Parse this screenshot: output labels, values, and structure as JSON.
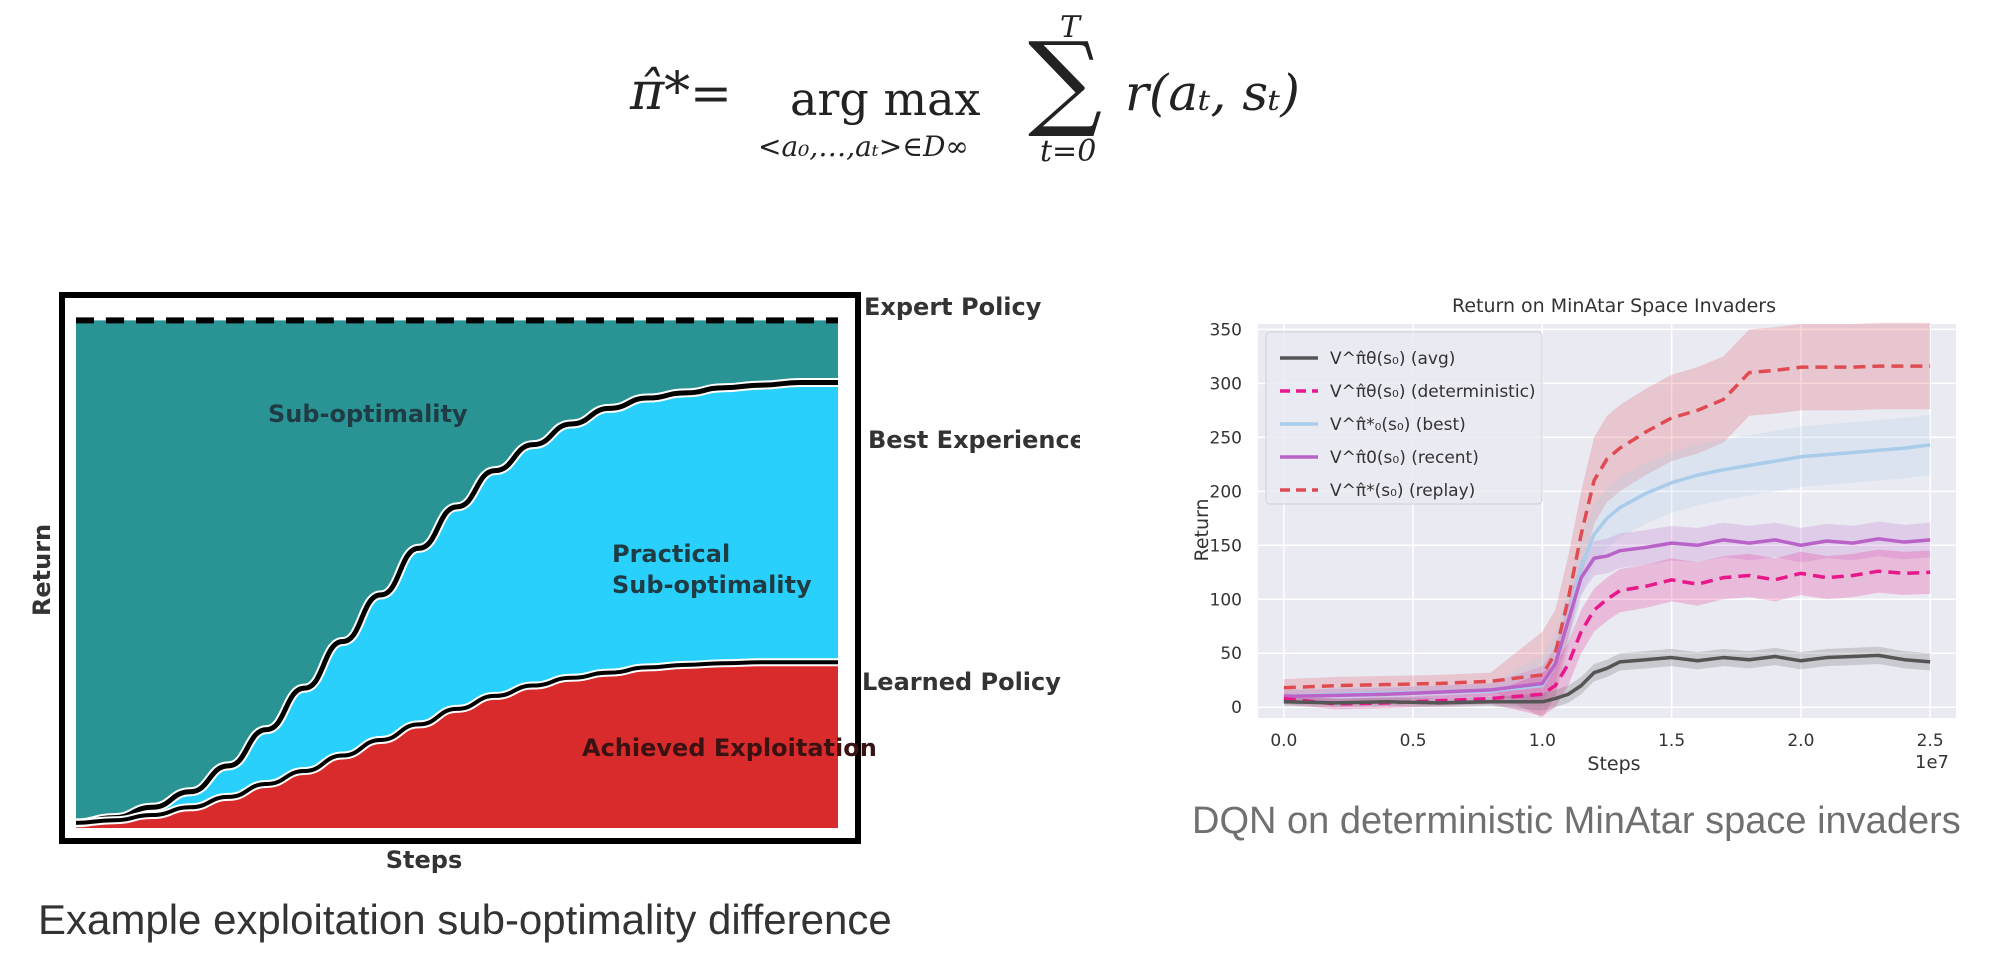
{
  "formula": {
    "lhs": "π̂*",
    "equals": "=",
    "operator": "arg max",
    "subscript": "<a₀,…,aₜ>∈D∞",
    "sum_symbol": "∑",
    "upper_limit": "T",
    "lower_limit": "t=0",
    "rhs": "r(aₜ, sₜ)"
  },
  "captions": {
    "left": "Example exploitation sub-optimality difference",
    "right": "DQN on deterministic MinAtar space invaders"
  },
  "chart_data": [
    {
      "type": "area",
      "title": "",
      "xlabel": "Steps",
      "ylabel": "Return",
      "x": [
        0,
        0.05,
        0.1,
        0.15,
        0.2,
        0.25,
        0.3,
        0.35,
        0.4,
        0.45,
        0.5,
        0.55,
        0.6,
        0.65,
        0.7,
        0.75,
        0.8,
        0.85,
        0.9,
        0.95,
        1.0
      ],
      "ylim": [
        0,
        1
      ],
      "series": [
        {
          "name": "Expert Policy",
          "values": [
            0.98,
            0.98,
            0.98,
            0.98,
            0.98,
            0.98,
            0.98,
            0.98,
            0.98,
            0.98,
            0.98,
            0.98,
            0.98,
            0.98,
            0.98,
            0.98,
            0.98,
            0.98,
            0.98,
            0.98,
            0.98
          ]
        },
        {
          "name": "Best Experience",
          "values": [
            0.01,
            0.02,
            0.04,
            0.07,
            0.12,
            0.19,
            0.27,
            0.36,
            0.45,
            0.54,
            0.62,
            0.69,
            0.74,
            0.78,
            0.81,
            0.83,
            0.84,
            0.85,
            0.855,
            0.86,
            0.86
          ]
        },
        {
          "name": "Learned Policy",
          "values": [
            0.01,
            0.015,
            0.025,
            0.04,
            0.06,
            0.085,
            0.11,
            0.14,
            0.17,
            0.2,
            0.23,
            0.255,
            0.275,
            0.29,
            0.3,
            0.31,
            0.315,
            0.318,
            0.32,
            0.32,
            0.32
          ]
        }
      ],
      "regions": [
        {
          "name": "Sub-optimality",
          "color": "#2A9494"
        },
        {
          "name": "Practical Sub-optimality",
          "color": "#29D0FC"
        },
        {
          "name": "Achieved Exploitation",
          "color": "#D92B2B"
        }
      ],
      "region_label_lines": [
        "Sub-optimality",
        "Practical",
        "Sub-optimality",
        "Achieved Exploitation"
      ]
    },
    {
      "type": "line",
      "title": "Return on MinAtar Space Invaders",
      "xlabel": "Steps",
      "ylabel": "Return",
      "xlim": [
        -0.1,
        2.6
      ],
      "ylim": [
        -10,
        355
      ],
      "x_tick_labels": [
        "0.0",
        "0.5",
        "1.0",
        "1.5",
        "2.0",
        "2.5"
      ],
      "x_ticks": [
        0,
        0.5,
        1.0,
        1.5,
        2.0,
        2.5
      ],
      "x_offset_label": "1e7",
      "y_ticks": [
        0,
        50,
        100,
        150,
        200,
        250,
        300,
        350
      ],
      "y_tick_labels": [
        "0",
        "50",
        "100",
        "150",
        "200",
        "250",
        "300",
        "350"
      ],
      "grid": true,
      "legend_position": "top-left",
      "x": [
        0,
        0.2,
        0.4,
        0.6,
        0.8,
        1.0,
        1.05,
        1.1,
        1.15,
        1.2,
        1.25,
        1.3,
        1.4,
        1.5,
        1.6,
        1.7,
        1.8,
        1.9,
        2.0,
        2.1,
        2.2,
        2.3,
        2.4,
        2.5
      ],
      "series": [
        {
          "name": "avg",
          "legend": "V^π̂θ(s₀) (avg)",
          "color": "#555555",
          "dash": "solid",
          "values": [
            5,
            4,
            5,
            4,
            5,
            5,
            8,
            12,
            20,
            32,
            36,
            42,
            44,
            46,
            43,
            46,
            44,
            47,
            43,
            46,
            47,
            48,
            44,
            42
          ],
          "band": [
            4,
            8
          ]
        },
        {
          "name": "deterministic",
          "legend": "V^π̂θ(s₀) (deterministic)",
          "color": "#E8178A",
          "dash": "dashed",
          "values": [
            8,
            3,
            4,
            6,
            8,
            12,
            20,
            40,
            70,
            90,
            100,
            108,
            112,
            118,
            114,
            120,
            122,
            118,
            124,
            120,
            122,
            126,
            124,
            125
          ],
          "band": [
            5,
            20
          ]
        },
        {
          "name": "best",
          "legend": "V^π̂*₀(s₀) (best)",
          "color": "#A9CCEA",
          "dash": "solid",
          "values": [
            10,
            12,
            13,
            14,
            15,
            20,
            40,
            80,
            130,
            160,
            175,
            185,
            198,
            208,
            215,
            220,
            224,
            228,
            232,
            234,
            236,
            238,
            240,
            243
          ],
          "band": [
            6,
            28
          ]
        },
        {
          "name": "recent",
          "legend": "V^π̂0(s₀) (recent)",
          "color": "#B963C8",
          "dash": "solid",
          "values": [
            10,
            11,
            12,
            14,
            16,
            22,
            40,
            80,
            120,
            138,
            140,
            145,
            148,
            152,
            150,
            155,
            152,
            155,
            150,
            154,
            152,
            156,
            153,
            155
          ],
          "band": [
            6,
            16
          ]
        },
        {
          "name": "replay",
          "legend": "V^π̂*(s₀) (replay)",
          "color": "#E04B52",
          "dash": "dashed",
          "values": [
            18,
            20,
            21,
            22,
            24,
            30,
            50,
            100,
            160,
            210,
            230,
            240,
            255,
            268,
            275,
            285,
            310,
            312,
            315,
            315,
            315,
            316,
            316,
            316
          ],
          "band": [
            8,
            40
          ]
        }
      ]
    }
  ]
}
